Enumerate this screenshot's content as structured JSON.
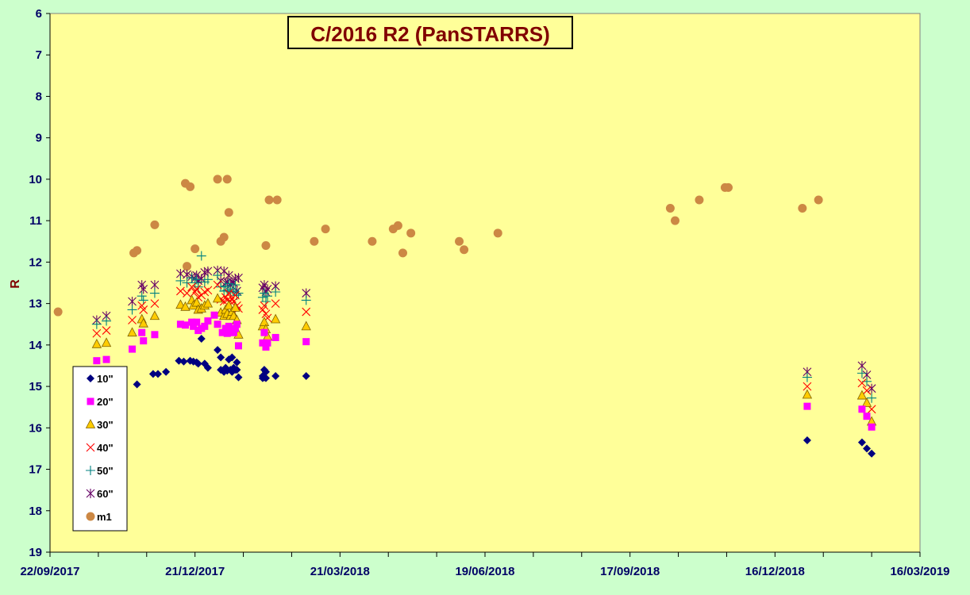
{
  "chart_data": {
    "type": "scatter",
    "title": "C/2016 R2 (PanSTARRS)",
    "ylabel": "R",
    "xlabel": "",
    "ylim": [
      6,
      19
    ],
    "y_inverted": true,
    "y_ticks": [
      "6",
      "7",
      "8",
      "9",
      "10",
      "11",
      "12",
      "13",
      "14",
      "15",
      "16",
      "17",
      "18",
      "19"
    ],
    "x_range": [
      "22/09/2017",
      "16/03/2019"
    ],
    "x_ticks": [
      "22/09/2017",
      "21/12/2017",
      "21/03/2018",
      "19/06/2018",
      "17/09/2018",
      "16/12/2018",
      "16/03/2019"
    ],
    "legend_position": "bottom-left",
    "grid": false,
    "colors": {
      "plot_bg": "#ffff99",
      "page_bg": "#ccffcc"
    },
    "series": [
      {
        "name": "10\"",
        "marker": "diamond",
        "color": "#000080",
        "x": [
          "2017-11-15",
          "2017-11-25",
          "2017-11-28",
          "2017-12-03",
          "2017-12-11",
          "2017-12-14",
          "2017-12-18",
          "2017-12-20",
          "2017-12-22",
          "2017-12-23",
          "2017-12-25",
          "2017-12-27",
          "2017-12-29",
          "2018-01-04",
          "2018-01-06",
          "2018-01-06",
          "2018-01-08",
          "2018-01-09",
          "2018-01-10",
          "2018-01-11",
          "2018-01-12",
          "2018-01-13",
          "2018-01-13",
          "2018-01-14",
          "2018-01-15",
          "2018-01-16",
          "2018-01-16",
          "2018-01-17",
          "2018-02-01",
          "2018-02-01",
          "2018-02-02",
          "2018-02-02",
          "2018-02-03",
          "2018-02-03",
          "2018-02-09",
          "2018-02-28",
          "2019-01-05",
          "2019-02-08",
          "2019-02-11",
          "2019-02-14"
        ],
        "y": [
          14.95,
          14.7,
          14.7,
          14.65,
          14.38,
          14.4,
          14.38,
          14.4,
          14.42,
          14.45,
          13.85,
          14.45,
          14.55,
          14.12,
          14.6,
          14.3,
          14.65,
          14.55,
          14.62,
          14.35,
          14.6,
          14.3,
          14.65,
          14.55,
          14.6,
          14.6,
          14.42,
          14.78,
          14.8,
          14.75,
          14.6,
          14.78,
          14.65,
          14.8,
          14.75,
          14.75,
          16.3,
          16.35,
          16.5,
          16.62
        ]
      },
      {
        "name": "20\"",
        "marker": "square",
        "color": "#ff00ff",
        "x": [
          "2017-10-21",
          "2017-10-27",
          "2017-11-12",
          "2017-11-18",
          "2017-11-19",
          "2017-11-26",
          "2017-12-12",
          "2017-12-15",
          "2017-12-19",
          "2017-12-20",
          "2017-12-22",
          "2017-12-23",
          "2017-12-25",
          "2017-12-27",
          "2017-12-29",
          "2018-01-02",
          "2018-01-04",
          "2018-01-07",
          "2018-01-09",
          "2018-01-10",
          "2018-01-11",
          "2018-01-12",
          "2018-01-13",
          "2018-01-14",
          "2018-01-15",
          "2018-01-16",
          "2018-01-17",
          "2018-02-01",
          "2018-02-02",
          "2018-02-03",
          "2018-02-04",
          "2018-02-09",
          "2018-02-28",
          "2019-01-05",
          "2019-02-08",
          "2019-02-11",
          "2019-02-14"
        ],
        "y": [
          14.38,
          14.35,
          14.1,
          13.7,
          13.9,
          13.75,
          13.5,
          13.52,
          13.45,
          13.55,
          13.45,
          13.65,
          13.6,
          13.55,
          13.42,
          13.28,
          13.5,
          13.7,
          13.6,
          13.72,
          13.55,
          13.7,
          13.65,
          13.7,
          13.6,
          13.5,
          14.02,
          13.95,
          13.7,
          14.05,
          13.95,
          13.82,
          13.92,
          15.48,
          15.55,
          15.72,
          15.98
        ]
      },
      {
        "name": "30\"",
        "marker": "triangle",
        "color": "#ffcc00",
        "x": [
          "2017-10-21",
          "2017-10-27",
          "2017-11-12",
          "2017-11-18",
          "2017-11-19",
          "2017-11-26",
          "2017-12-12",
          "2017-12-15",
          "2017-12-19",
          "2017-12-20",
          "2017-12-22",
          "2017-12-23",
          "2017-12-25",
          "2017-12-27",
          "2017-12-29",
          "2018-01-04",
          "2018-01-06",
          "2018-01-08",
          "2018-01-09",
          "2018-01-10",
          "2018-01-11",
          "2018-01-12",
          "2018-01-13",
          "2018-01-14",
          "2018-01-15",
          "2018-01-16",
          "2018-01-17",
          "2018-02-01",
          "2018-02-02",
          "2018-02-03",
          "2018-02-04",
          "2018-02-09",
          "2018-02-28",
          "2019-01-05",
          "2019-02-08",
          "2019-02-11",
          "2019-02-14"
        ],
        "y": [
          13.98,
          13.95,
          13.7,
          13.38,
          13.48,
          13.3,
          13.03,
          13.08,
          12.92,
          13.05,
          12.98,
          13.15,
          13.12,
          13.05,
          13.0,
          12.88,
          13.22,
          13.3,
          13.15,
          13.25,
          13.05,
          13.3,
          13.2,
          13.3,
          13.1,
          13.4,
          13.75,
          13.55,
          13.45,
          13.62,
          13.8,
          13.38,
          13.55,
          15.2,
          15.22,
          15.4,
          15.85
        ]
      },
      {
        "name": "40\"",
        "marker": "x",
        "color": "#ff0000",
        "x": [
          "2017-10-21",
          "2017-10-27",
          "2017-11-12",
          "2017-11-18",
          "2017-11-19",
          "2017-11-26",
          "2017-12-12",
          "2017-12-16",
          "2017-12-19",
          "2017-12-21",
          "2017-12-22",
          "2017-12-23",
          "2017-12-25",
          "2017-12-27",
          "2017-12-29",
          "2018-01-04",
          "2018-01-06",
          "2018-01-08",
          "2018-01-09",
          "2018-01-10",
          "2018-01-11",
          "2018-01-12",
          "2018-01-13",
          "2018-01-14",
          "2018-01-15",
          "2018-01-16",
          "2018-01-17",
          "2018-02-01",
          "2018-02-02",
          "2018-02-03",
          "2018-02-04",
          "2018-02-09",
          "2018-02-28",
          "2019-01-05",
          "2019-02-08",
          "2019-02-11",
          "2019-02-14"
        ],
        "y": [
          13.72,
          13.65,
          13.4,
          13.05,
          13.15,
          13.0,
          12.7,
          12.75,
          12.6,
          12.72,
          12.65,
          12.85,
          12.8,
          12.72,
          12.68,
          12.55,
          12.9,
          12.95,
          12.85,
          12.92,
          12.75,
          12.95,
          12.88,
          12.95,
          12.8,
          13.05,
          13.12,
          13.15,
          13.05,
          13.25,
          13.35,
          13.0,
          13.2,
          15.0,
          14.92,
          15.1,
          15.55
        ]
      },
      {
        "name": "50\"",
        "marker": "plus",
        "color": "#008080",
        "x": [
          "2017-10-21",
          "2017-10-27",
          "2017-11-12",
          "2017-11-18",
          "2017-11-19",
          "2017-11-26",
          "2017-12-12",
          "2017-12-16",
          "2017-12-19",
          "2017-12-21",
          "2017-12-22",
          "2017-12-23",
          "2017-12-25",
          "2017-12-27",
          "2017-12-29",
          "2018-01-04",
          "2018-01-06",
          "2018-01-08",
          "2018-01-09",
          "2018-01-10",
          "2018-01-11",
          "2018-01-12",
          "2018-01-13",
          "2018-01-14",
          "2018-01-15",
          "2018-01-16",
          "2018-01-17",
          "2018-02-01",
          "2018-02-02",
          "2018-02-03",
          "2018-02-04",
          "2018-02-09",
          "2018-02-28",
          "2019-01-05",
          "2019-02-08",
          "2019-02-11",
          "2019-02-14"
        ],
        "y": [
          13.5,
          13.42,
          13.15,
          12.82,
          12.92,
          12.75,
          12.45,
          12.5,
          12.38,
          12.5,
          12.42,
          12.6,
          11.85,
          12.48,
          12.42,
          12.32,
          12.6,
          12.7,
          12.58,
          12.68,
          12.52,
          12.72,
          12.65,
          12.7,
          12.55,
          12.8,
          12.75,
          12.85,
          12.75,
          12.95,
          12.82,
          12.72,
          12.92,
          14.78,
          14.68,
          14.88,
          15.28
        ]
      },
      {
        "name": "60\"",
        "marker": "star",
        "color": "#660066",
        "x": [
          "2017-10-21",
          "2017-10-27",
          "2017-11-12",
          "2017-11-18",
          "2017-11-19",
          "2017-11-26",
          "2017-12-12",
          "2017-12-16",
          "2017-12-19",
          "2017-12-21",
          "2017-12-22",
          "2017-12-23",
          "2017-12-25",
          "2017-12-27",
          "2017-12-29",
          "2018-01-04",
          "2018-01-06",
          "2018-01-08",
          "2018-01-09",
          "2018-01-10",
          "2018-01-11",
          "2018-01-12",
          "2018-01-13",
          "2018-01-14",
          "2018-01-15",
          "2018-01-16",
          "2018-01-17",
          "2018-02-01",
          "2018-02-02",
          "2018-02-03",
          "2018-02-04",
          "2018-02-09",
          "2018-02-28",
          "2019-01-05",
          "2019-02-08",
          "2019-02-11",
          "2019-02-14"
        ],
        "y": [
          13.4,
          13.3,
          12.95,
          12.55,
          12.65,
          12.55,
          12.28,
          12.3,
          12.35,
          12.4,
          12.32,
          12.45,
          12.4,
          12.25,
          12.22,
          12.2,
          12.45,
          12.22,
          12.5,
          12.48,
          12.32,
          12.55,
          12.48,
          12.5,
          12.4,
          12.7,
          12.38,
          12.62,
          12.55,
          12.72,
          12.65,
          12.58,
          12.75,
          14.65,
          14.5,
          14.72,
          15.05
        ]
      },
      {
        "name": "m1",
        "marker": "circle",
        "color": "#cc8844",
        "x": [
          "2017-09-27",
          "2017-11-13",
          "2017-11-15",
          "2017-11-26",
          "2017-12-15",
          "2017-12-16",
          "2017-12-18",
          "2017-12-21",
          "2018-01-04",
          "2018-01-06",
          "2018-01-08",
          "2018-01-10",
          "2018-01-11",
          "2018-02-03",
          "2018-02-05",
          "2018-02-10",
          "2018-03-05",
          "2018-03-12",
          "2018-04-10",
          "2018-04-23",
          "2018-04-26",
          "2018-04-29",
          "2018-05-04",
          "2018-06-03",
          "2018-06-06",
          "2018-06-27",
          "2018-10-12",
          "2018-10-15",
          "2018-10-30",
          "2018-11-15",
          "2018-11-17",
          "2019-01-02",
          "2019-01-12"
        ],
        "y": [
          13.2,
          11.78,
          11.72,
          11.1,
          10.1,
          12.1,
          10.18,
          11.68,
          10.0,
          11.5,
          11.4,
          10.0,
          10.8,
          11.6,
          10.5,
          10.5,
          11.5,
          11.2,
          11.5,
          11.2,
          11.12,
          11.78,
          11.3,
          11.5,
          11.7,
          11.3,
          10.7,
          11.0,
          10.5,
          10.2,
          10.2,
          10.7,
          10.5
        ]
      }
    ]
  }
}
